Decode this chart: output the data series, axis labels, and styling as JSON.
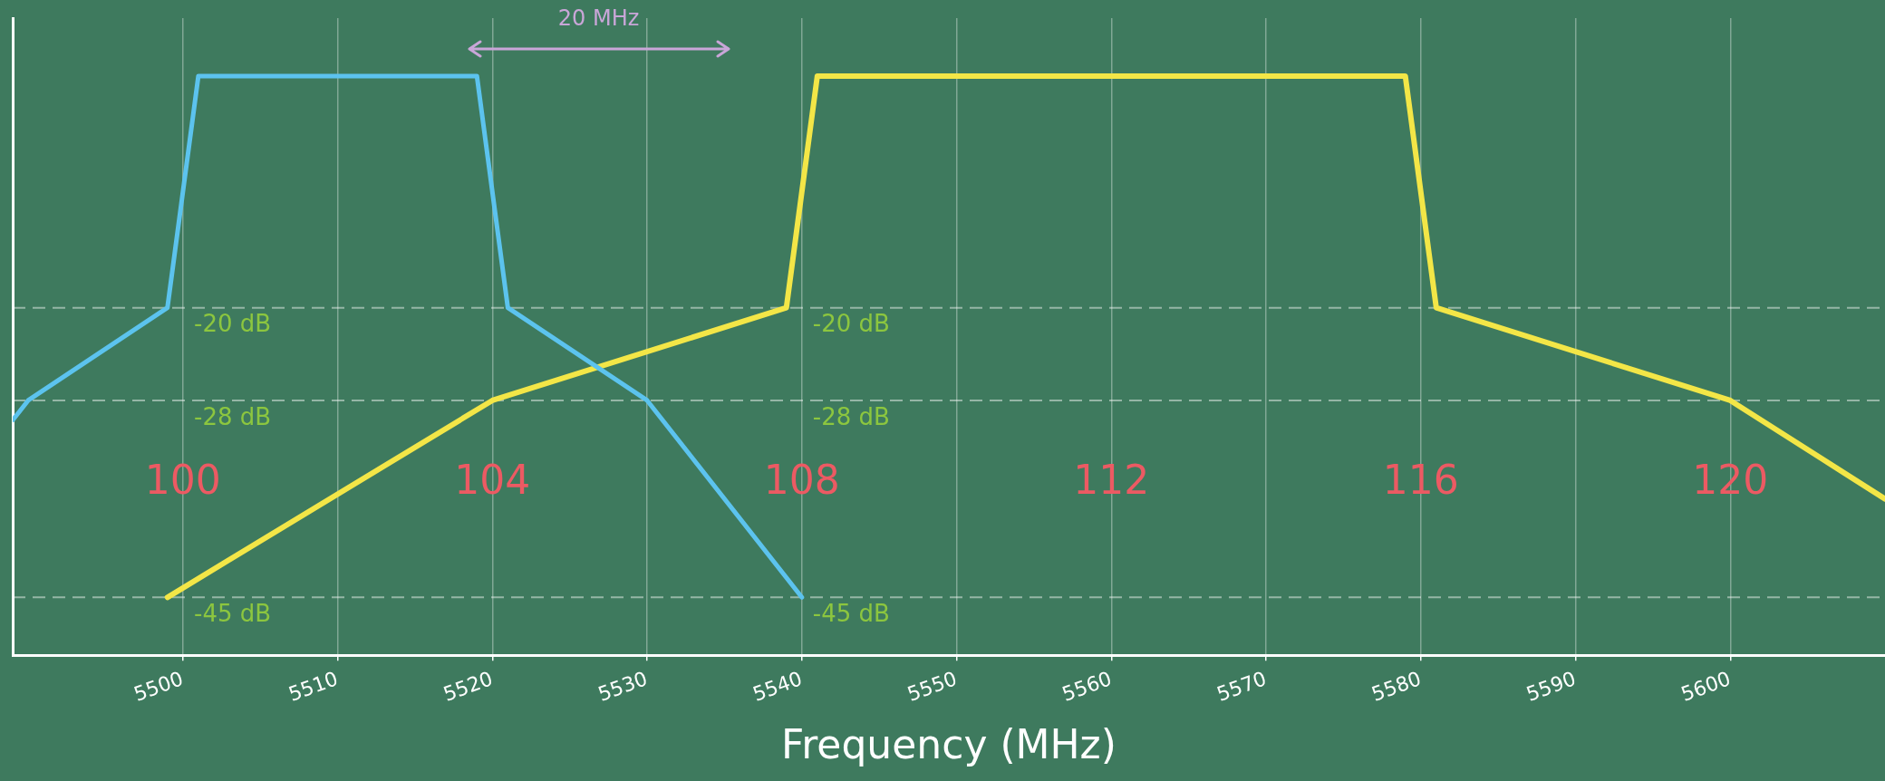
{
  "chart_data": {
    "type": "line",
    "xlabel": "Frequency (MHz)",
    "x": [
      5489,
      5490,
      5499,
      5501,
      5519,
      5521,
      5530,
      5540
    ],
    "series": [
      {
        "color": "#5cc3ee",
        "values": [
          -29.7,
          -28,
          -20,
          0,
          0,
          -20,
          -28,
          -45
        ]
      },
      {
        "color": "#f3e647",
        "x": [
          5499,
          5520,
          5539,
          5541,
          5579,
          5581,
          5600,
          5610
        ],
        "values": [
          -45,
          -28,
          -20,
          0,
          0,
          -20,
          -28,
          -36.5
        ]
      }
    ],
    "xlim": [
      5489,
      5610
    ],
    "xticks": [
      5500,
      5510,
      5520,
      5530,
      5540,
      5550,
      5560,
      5570,
      5580,
      5590,
      5600
    ],
    "ylim": [
      -50,
      5
    ],
    "tick_labels": "x",
    "grid": "x",
    "legend": false,
    "marker": "none",
    "line_style": "solid",
    "ref_lines": [
      {
        "axis": "y",
        "value": -20,
        "label": "-20 dB"
      },
      {
        "axis": "y",
        "value": -28,
        "label": "-28 dB"
      },
      {
        "axis": "y",
        "value": -45,
        "label": "-45 dB"
      }
    ],
    "annotations": [
      "20 MHz",
      "-20 dB",
      "-28 dB",
      "-45 dB",
      "100",
      "104",
      "108",
      "112",
      "116",
      "120"
    ]
  }
}
